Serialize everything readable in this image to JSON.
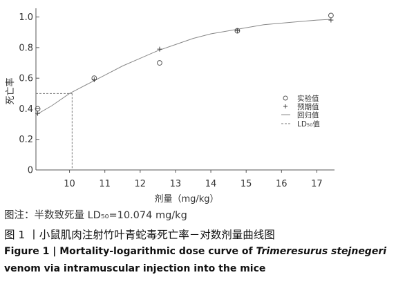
{
  "chart_data": {
    "type": "scatter",
    "xlabel": "剂量（mg/kg）",
    "ylabel": "死亡率",
    "xlim": [
      9.05,
      17.5
    ],
    "ylim": [
      0,
      1.03
    ],
    "xticks": [
      10,
      11,
      12,
      13,
      14,
      15,
      16,
      17
    ],
    "yticks": [
      0,
      0.2,
      0.4,
      0.6,
      0.8,
      1.0
    ],
    "ytick_labels": [
      "0",
      "0.2",
      "0.4",
      "0.6",
      "0.8",
      "1.0"
    ],
    "grid": false,
    "legend_position": "right",
    "series": [
      {
        "name": "实验值",
        "marker": "circle",
        "x": [
          9.1,
          10.7,
          12.55,
          14.75,
          17.4
        ],
        "y": [
          0.4,
          0.6,
          0.7,
          0.91,
          1.01
        ]
      },
      {
        "name": "预期值",
        "marker": "plus",
        "x": [
          9.1,
          10.7,
          12.55,
          14.75,
          17.4
        ],
        "y": [
          0.37,
          0.59,
          0.79,
          0.91,
          0.98
        ]
      },
      {
        "name": "回归值",
        "marker": "line",
        "x": [
          9.05,
          9.5,
          10,
          10.5,
          11,
          11.5,
          12,
          12.5,
          13,
          13.5,
          14,
          14.5,
          15,
          15.5,
          16,
          16.5,
          17,
          17.4
        ],
        "y": [
          0.36,
          0.42,
          0.5,
          0.56,
          0.62,
          0.68,
          0.73,
          0.78,
          0.82,
          0.86,
          0.89,
          0.91,
          0.93,
          0.95,
          0.96,
          0.97,
          0.98,
          0.985
        ]
      }
    ],
    "ld50": {
      "name": "LD₅₀值",
      "x": 10.074,
      "y": 0.5
    }
  },
  "captions": {
    "note": "图注：半数致死量 LD₅₀=10.074 mg/kg",
    "cn": "图 1 丨小鼠肌肉注射竹叶青蛇毒死亡率－对数剂量曲线图",
    "en_prefix": "Figure 1 | Mortality-logarithmic dose curve of ",
    "en_species": "Trimeresurus stejnegeri",
    "en_suffix": "venom via intramuscular injection into the mice"
  }
}
